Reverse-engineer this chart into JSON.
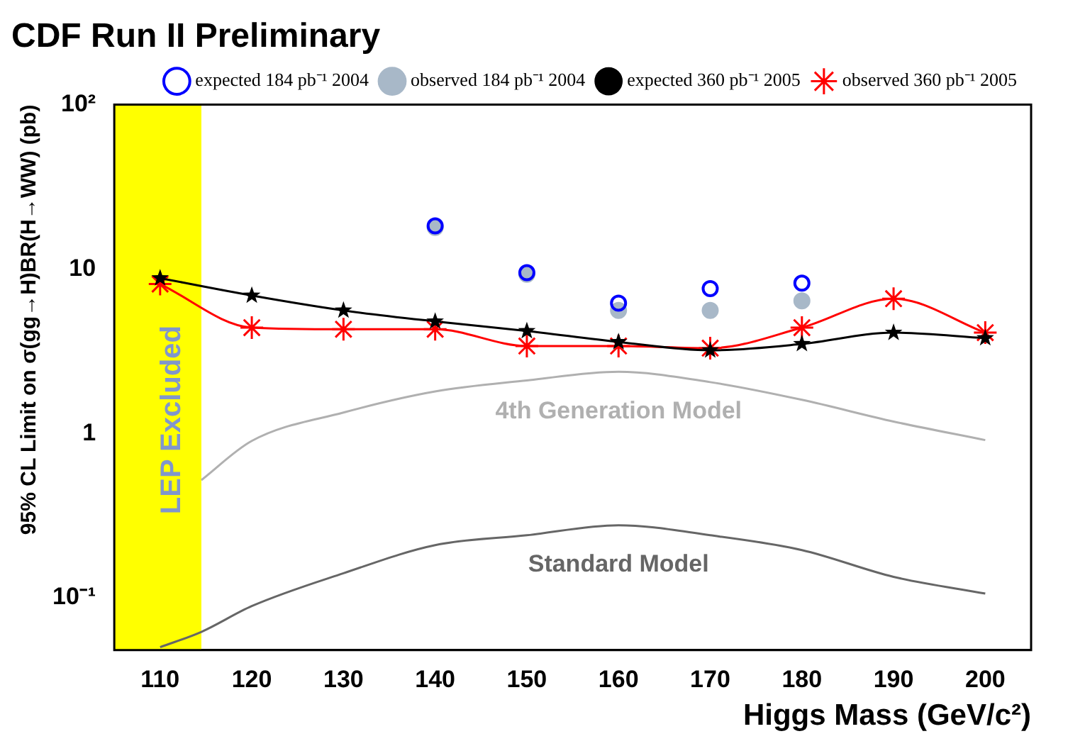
{
  "chart_data": {
    "type": "line",
    "title": "CDF Run II Preliminary",
    "xlabel": "Higgs Mass (GeV/c²)",
    "ylabel": "95% CL Limit on σ(gg→H)BR(H→WW) (pb)",
    "xlim": [
      105,
      205
    ],
    "xticks": [
      110,
      120,
      130,
      140,
      150,
      160,
      170,
      180,
      190,
      200
    ],
    "ylim": [
      0.048,
      100
    ],
    "yticks": [
      {
        "value": 0.1,
        "label": "10⁻¹"
      },
      1,
      10,
      {
        "value": 100,
        "label": "10²"
      }
    ],
    "log": "y",
    "grid": false,
    "legend": "top right",
    "bands": [
      {
        "axis": "x",
        "from": 105,
        "to": 114.5,
        "label": "LEP Excluded",
        "color": "#ffff00"
      }
    ],
    "series": [
      {
        "name": "expected 184 pb⁻¹ 2004",
        "type": "scatter",
        "marker": "circle",
        "color": "#0000ff",
        "x": [
          140,
          150,
          160,
          170,
          180
        ],
        "values": [
          18.3,
          9.5,
          6.2,
          7.6,
          8.2
        ]
      },
      {
        "name": "observed 184 pb⁻¹ 2004",
        "type": "scatter",
        "marker": "circle",
        "color": "#a8b8c8",
        "x": [
          140,
          150,
          160,
          170,
          180
        ],
        "values": [
          17.9,
          9.3,
          5.6,
          5.6,
          6.4
        ]
      },
      {
        "name": "expected 360 pb⁻¹ 2005",
        "type": "line",
        "marker": "star",
        "color": "#000000",
        "x": [
          110,
          120,
          130,
          140,
          150,
          160,
          170,
          180,
          190,
          200
        ],
        "values": [
          8.8,
          6.9,
          5.6,
          4.8,
          4.2,
          3.6,
          3.2,
          3.5,
          4.1,
          3.8
        ]
      },
      {
        "name": "observed 360 pb⁻¹ 2005",
        "type": "line",
        "marker": "cross",
        "color": "#ff0000",
        "x": [
          110,
          120,
          130,
          140,
          150,
          160,
          170,
          180,
          190,
          200
        ],
        "values": [
          8.1,
          4.4,
          4.3,
          4.3,
          3.4,
          3.4,
          3.3,
          4.4,
          6.6,
          4.1
        ]
      },
      {
        "name": "4th Generation Model",
        "type": "line",
        "marker": "none",
        "color": "#b0b0b0",
        "x": [
          114.5,
          120,
          130,
          140,
          150,
          160,
          170,
          180,
          190,
          200
        ],
        "values": [
          0.52,
          0.9,
          1.34,
          1.8,
          2.1,
          2.37,
          2.05,
          1.6,
          1.18,
          0.91
        ]
      },
      {
        "name": "Standard Model",
        "type": "line",
        "marker": "none",
        "color": "#666666",
        "x": [
          110,
          114.5,
          120,
          130,
          140,
          150,
          160,
          170,
          180,
          190,
          200
        ],
        "values": [
          0.05,
          0.062,
          0.089,
          0.141,
          0.209,
          0.24,
          0.276,
          0.24,
          0.195,
          0.134,
          0.106
        ]
      }
    ]
  }
}
